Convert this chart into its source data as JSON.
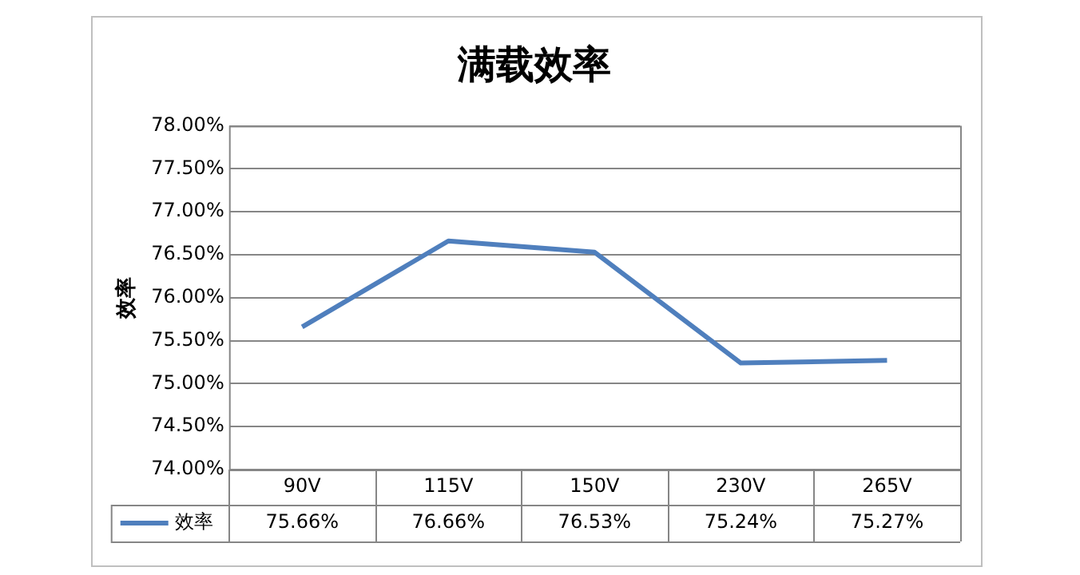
{
  "chart_data": {
    "type": "line",
    "title": "满载效率",
    "ylabel": "效率",
    "categories": [
      "90V",
      "115V",
      "150V",
      "230V",
      "265V"
    ],
    "series": [
      {
        "name": "效率",
        "color": "#4f7fbd",
        "values": [
          75.66,
          76.66,
          76.53,
          75.24,
          75.27
        ],
        "value_labels": [
          "75.66%",
          "76.66%",
          "76.53%",
          "75.24%",
          "75.27%"
        ]
      }
    ],
    "ylim": [
      74,
      78
    ],
    "yticks": [
      {
        "value": 74,
        "label": "74.00%"
      },
      {
        "value": 74.5,
        "label": "74.50%"
      },
      {
        "value": 75,
        "label": "75.00%"
      },
      {
        "value": 75.5,
        "label": "75.50%"
      },
      {
        "value": 76,
        "label": "76.00%"
      },
      {
        "value": 76.5,
        "label": "76.50%"
      },
      {
        "value": 77,
        "label": "77.00%"
      },
      {
        "value": 77.5,
        "label": "77.50%"
      },
      {
        "value": 78,
        "label": "78.00%"
      }
    ],
    "grid": "y",
    "legend": "bottom left",
    "marker": "none",
    "line_style": "solid"
  }
}
